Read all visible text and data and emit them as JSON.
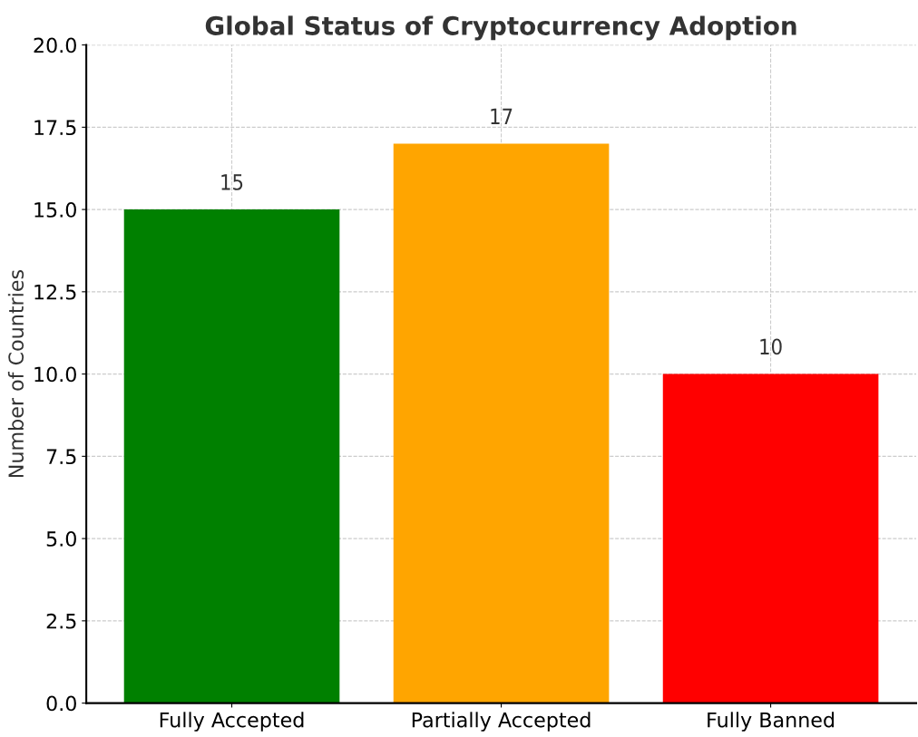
{
  "chart_data": {
    "type": "bar",
    "title": "Global Status of Cryptocurrency Adoption",
    "ylabel": "Number of Countries",
    "categories": [
      "Fully Accepted",
      "Partially Accepted",
      "Fully Banned"
    ],
    "values": [
      15,
      17,
      10
    ],
    "colors": [
      "#008000",
      "#ffa500",
      "#ff0000"
    ],
    "ylim": [
      0,
      20
    ],
    "yticks": [
      {
        "value": 0,
        "label": "0.0"
      },
      {
        "value": 2.5,
        "label": "2.5"
      },
      {
        "value": 5,
        "label": "5.0"
      },
      {
        "value": 7.5,
        "label": "7.5"
      },
      {
        "value": 10,
        "label": "10.0"
      },
      {
        "value": 12.5,
        "label": "12.5"
      },
      {
        "value": 15,
        "label": "15.0"
      },
      {
        "value": 17.5,
        "label": "17.5"
      },
      {
        "value": 20,
        "label": "20.0"
      }
    ],
    "grid": true,
    "data_labels": true
  }
}
